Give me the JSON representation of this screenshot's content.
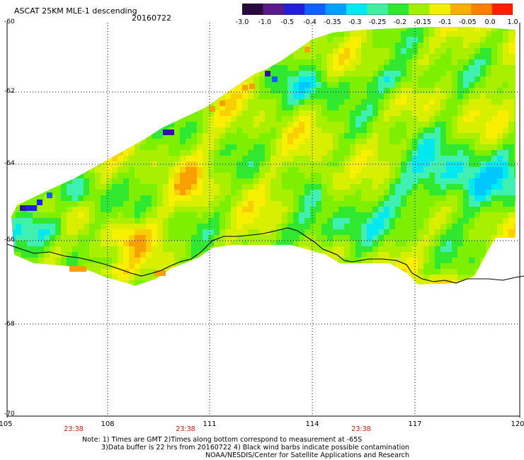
{
  "title": "ASCAT 25KM MLE-1 descending",
  "date": "20160722",
  "colorbar": {
    "tick_labels": [
      "-3.0",
      "-1.0",
      "-0.5",
      "-0.4",
      "-0.35",
      "-0.3",
      "-0.25",
      "-0.2",
      "-0.15",
      "-0.1",
      "-0.05",
      "0.0",
      "1.0"
    ],
    "colors": [
      "#2a0a3c",
      "#5a1a8c",
      "#2020d8",
      "#1060ff",
      "#00a0ff",
      "#00e8f0",
      "#40f0a0",
      "#30e830",
      "#a0f000",
      "#f0f000",
      "#f8b000",
      "#ff8000",
      "#ff2000"
    ]
  },
  "axes": {
    "lat_labels": [
      "-60",
      "-62",
      "-64",
      "-66",
      "-68",
      "-70"
    ],
    "lon_labels": [
      "105",
      "108",
      "111",
      "114",
      "117",
      "120"
    ]
  },
  "pass_times": [
    "23:38",
    "23:38",
    "23:38"
  ],
  "notes": [
    "Note: 1) Times are GMT 2)Times along bottom correspond to measurement at -65S",
    "3)Data buffer is 22 hrs from 20160722 4) Black wind barbs indicate possible contamination",
    "NOAA/NESDIS/Center for Satellite Applications and Research"
  ],
  "colors": {
    "background": "#ffffff",
    "field_dominant": "#7cf000",
    "field_low": "#00d8f8",
    "field_high": "#f8d800",
    "time_label": "#c82000"
  }
}
